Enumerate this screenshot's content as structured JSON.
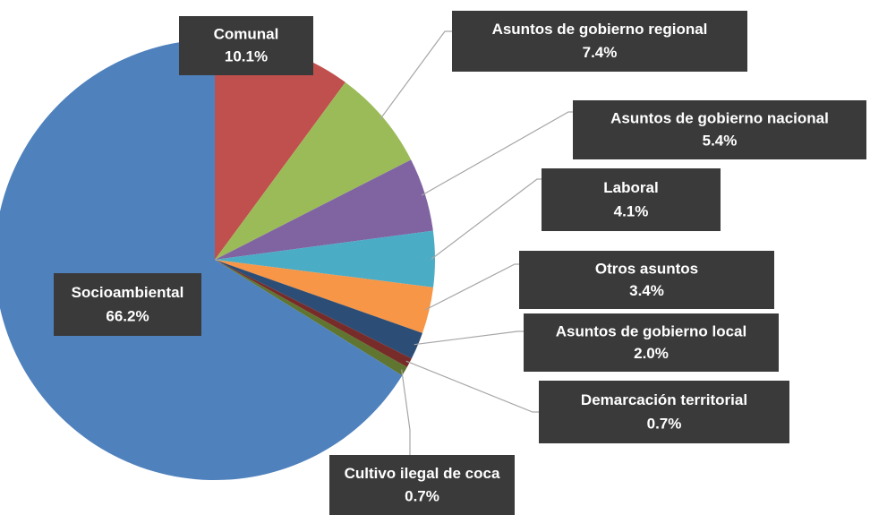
{
  "chart_data": {
    "type": "pie",
    "categories": [
      "Comunal",
      "Asuntos de gobierno regional",
      "Asuntos de gobierno nacional",
      "Laboral",
      "Otros asuntos",
      "Asuntos de gobierno local",
      "Demarcación territorial",
      "Cultivo ilegal de coca",
      "Socioambiental"
    ],
    "values": [
      10.1,
      7.4,
      5.4,
      4.1,
      3.4,
      2.0,
      0.7,
      0.7,
      66.2
    ],
    "value_labels": [
      "10.1%",
      "7.4%",
      "5.4%",
      "4.1%",
      "3.4%",
      "2.0%",
      "0.7%",
      "0.7%",
      "66.2%"
    ],
    "colors": [
      "#c0504d",
      "#9bbb59",
      "#8064a2",
      "#4bacc6",
      "#f79646",
      "#2c4d75",
      "#772c2a",
      "#5f7530",
      "#4f81bd"
    ]
  }
}
